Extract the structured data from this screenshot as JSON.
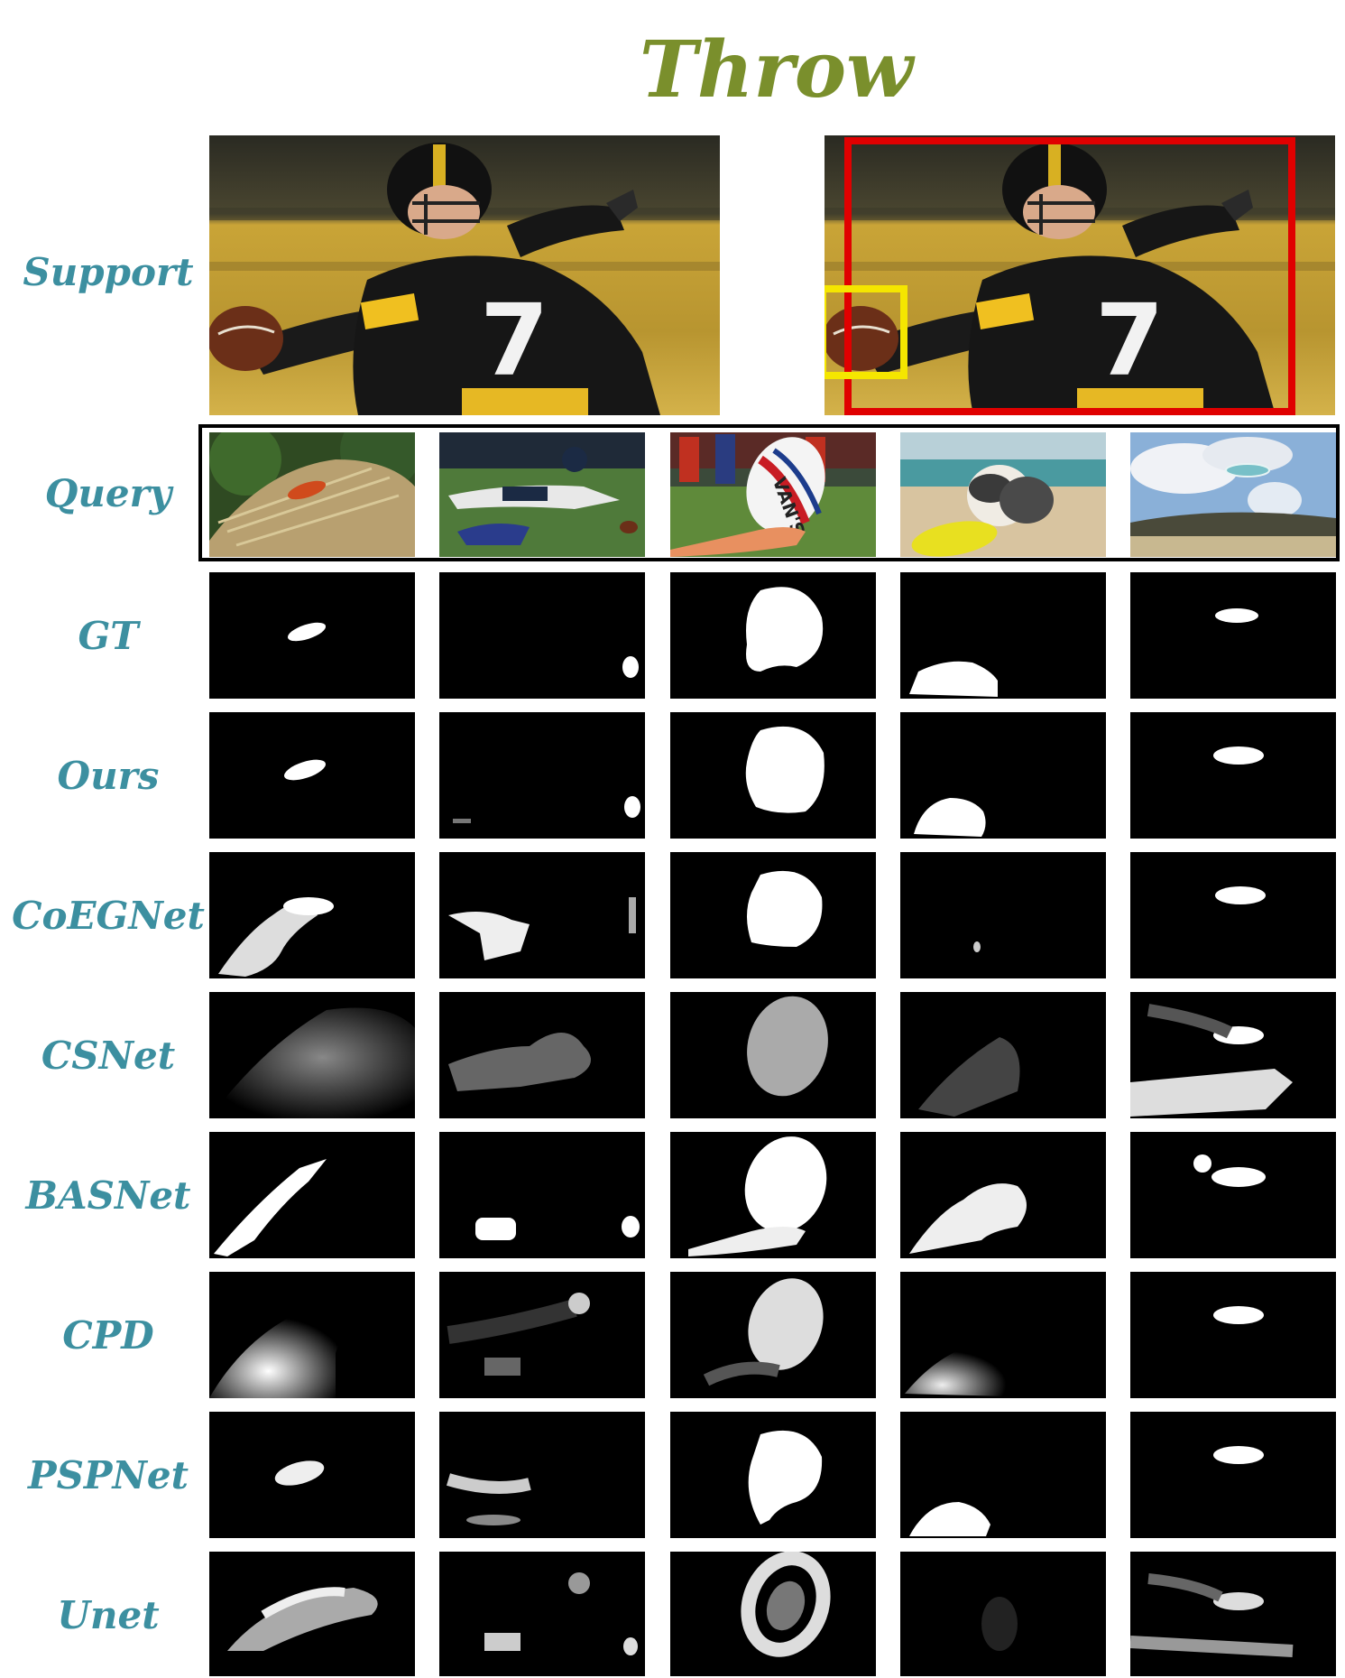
{
  "figure": {
    "title": "Throw",
    "rows": [
      {
        "key": "support",
        "label": "Support"
      },
      {
        "key": "query",
        "label": "Query"
      },
      {
        "key": "gt",
        "label": "GT"
      },
      {
        "key": "ours",
        "label": "Ours"
      },
      {
        "key": "coegnet",
        "label": "CoEGNet"
      },
      {
        "key": "csnet",
        "label": "CSNet"
      },
      {
        "key": "basnet",
        "label": "BASNet"
      },
      {
        "key": "cpd",
        "label": "CPD"
      },
      {
        "key": "pspnet",
        "label": "PSPNet"
      },
      {
        "key": "unet",
        "label": "Unet"
      }
    ],
    "support_images": [
      {
        "name": "support-image-plain",
        "jersey_number": "7",
        "ball_text": ""
      },
      {
        "name": "support-image-annotated",
        "jersey_number": "7",
        "boxes": [
          {
            "color": "#e00000",
            "target": "person"
          },
          {
            "color": "#f5e600",
            "target": "ball"
          }
        ]
      }
    ],
    "query_images": [
      {
        "scene": "frisbee on haystack"
      },
      {
        "scene": "football players diving"
      },
      {
        "scene": "hand holding rugby ball",
        "ball_text": "VAN'S"
      },
      {
        "scene": "dog with yellow frisbee on beach"
      },
      {
        "scene": "frisbee in sky over beach"
      }
    ],
    "colors": {
      "title": "#7a8f2c",
      "label": "#3c8fa0",
      "red_box": "#e00000",
      "yellow_box": "#f5e600"
    }
  }
}
